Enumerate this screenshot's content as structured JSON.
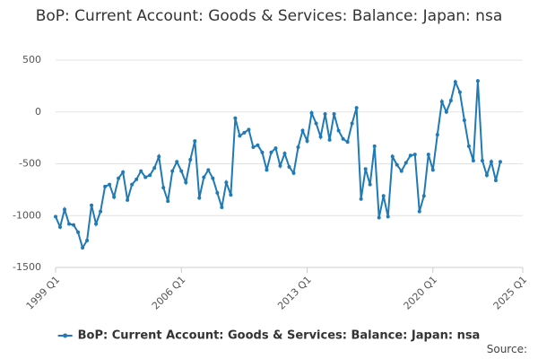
{
  "chart_data": {
    "type": "line",
    "title": "BoP: Current Account: Goods & Services: Balance: Japan: nsa",
    "x": [
      "1999 Q1",
      "1999 Q2",
      "1999 Q3",
      "1999 Q4",
      "2000 Q1",
      "2000 Q2",
      "2000 Q3",
      "2000 Q4",
      "2001 Q1",
      "2001 Q2",
      "2001 Q3",
      "2001 Q4",
      "2002 Q1",
      "2002 Q2",
      "2002 Q3",
      "2002 Q4",
      "2003 Q1",
      "2003 Q2",
      "2003 Q3",
      "2003 Q4",
      "2004 Q1",
      "2004 Q2",
      "2004 Q3",
      "2004 Q4",
      "2005 Q1",
      "2005 Q2",
      "2005 Q3",
      "2005 Q4",
      "2006 Q1",
      "2006 Q2",
      "2006 Q3",
      "2006 Q4",
      "2007 Q1",
      "2007 Q2",
      "2007 Q3",
      "2007 Q4",
      "2008 Q1",
      "2008 Q2",
      "2008 Q3",
      "2008 Q4",
      "2009 Q1",
      "2009 Q2",
      "2009 Q3",
      "2009 Q4",
      "2010 Q1",
      "2010 Q2",
      "2010 Q3",
      "2010 Q4",
      "2011 Q1",
      "2011 Q2",
      "2011 Q3",
      "2011 Q4",
      "2012 Q1",
      "2012 Q2",
      "2012 Q3",
      "2012 Q4",
      "2013 Q1",
      "2013 Q2",
      "2013 Q3",
      "2013 Q4",
      "2014 Q1",
      "2014 Q2",
      "2014 Q3",
      "2014 Q4",
      "2015 Q1",
      "2015 Q2",
      "2015 Q3",
      "2015 Q4",
      "2016 Q1",
      "2016 Q2",
      "2016 Q3",
      "2016 Q4",
      "2017 Q1",
      "2017 Q2",
      "2017 Q3",
      "2017 Q4",
      "2018 Q1",
      "2018 Q2",
      "2018 Q3",
      "2018 Q4",
      "2019 Q1",
      "2019 Q2",
      "2019 Q3",
      "2019 Q4",
      "2020 Q1",
      "2020 Q2",
      "2020 Q3",
      "2020 Q4",
      "2021 Q1",
      "2021 Q2",
      "2021 Q3",
      "2021 Q4",
      "2022 Q1",
      "2022 Q2",
      "2022 Q3",
      "2022 Q4",
      "2023 Q1",
      "2023 Q2",
      "2023 Q3",
      "2023 Q4"
    ],
    "series": [
      {
        "name": "BoP: Current Account: Goods & Services: Balance: Japan: nsa",
        "color": "#1f7ab5",
        "values": [
          -1010,
          -1110,
          -940,
          -1080,
          -1090,
          -1160,
          -1310,
          -1240,
          -900,
          -1080,
          -960,
          -720,
          -700,
          -820,
          -640,
          -580,
          -850,
          -700,
          -650,
          -570,
          -630,
          -610,
          -540,
          -430,
          -730,
          -860,
          -570,
          -480,
          -570,
          -680,
          -460,
          -280,
          -830,
          -630,
          -560,
          -640,
          -780,
          -920,
          -680,
          -800,
          -60,
          -230,
          -200,
          -170,
          -340,
          -320,
          -390,
          -560,
          -390,
          -350,
          -520,
          -400,
          -530,
          -590,
          -340,
          -180,
          -280,
          -10,
          -110,
          -240,
          -20,
          -270,
          -20,
          -180,
          -260,
          -290,
          -110,
          40,
          -840,
          -550,
          -700,
          -330,
          -1020,
          -810,
          -1010,
          -430,
          -510,
          -570,
          -490,
          -420,
          -410,
          -960,
          -810,
          -410,
          -560,
          -220,
          100,
          0,
          110,
          290,
          190,
          -80,
          -330,
          -470,
          300,
          -470,
          -610,
          -480,
          -660,
          -480
        ]
      }
    ],
    "ylim": [
      -1500,
      500
    ],
    "yticks": [
      -1500,
      -1000,
      -500,
      0,
      500
    ],
    "xticks": [
      "1999 Q1",
      "2006 Q1",
      "2013 Q1",
      "2020 Q1",
      "2025 Q1"
    ],
    "grid": true,
    "legend": "bottom",
    "source": "Source:"
  }
}
